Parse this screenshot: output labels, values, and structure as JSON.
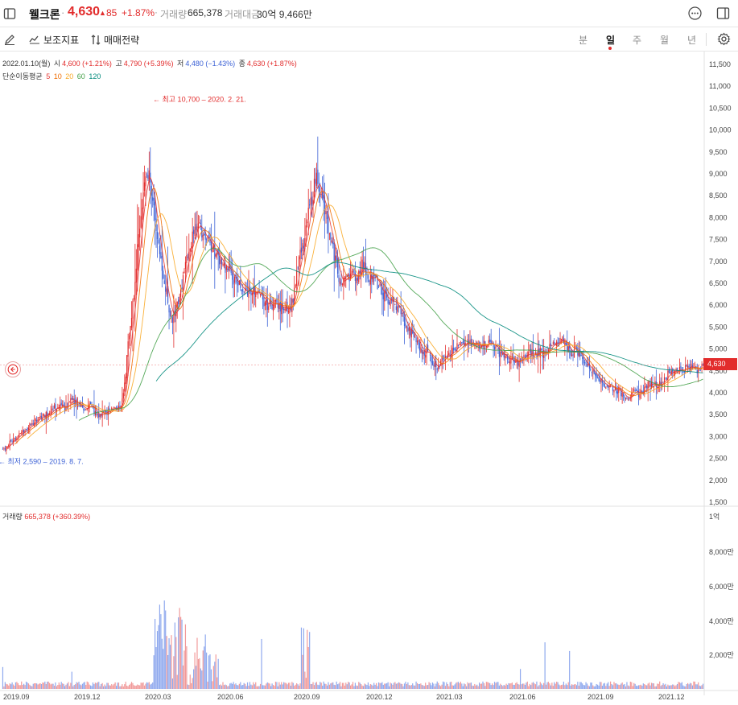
{
  "header": {
    "stock_name": "웰크론",
    "price": "4,630",
    "change": "85",
    "change_rate": "+1.87%",
    "volume_label": "거래량",
    "volume_value": "665,378",
    "amount_label": "거래대금",
    "amount_value": "30억 9,466만"
  },
  "toolbar": {
    "indicators_label": "보조지표",
    "strategy_label": "매매전략",
    "periods": [
      "분",
      "일",
      "주",
      "월",
      "년"
    ],
    "active_period": "일"
  },
  "legend": {
    "date": "2022.01.10(월)",
    "open_label": "시",
    "open_value": "4,600 (+1.21%)",
    "high_label": "고",
    "high_value": "4,790 (+5.39%)",
    "low_label": "저",
    "low_value": "4,480 (−1.43%)",
    "close_label": "종",
    "close_value": "4,630 (+1.87%)",
    "ma_label": "단순이동평균",
    "ma_periods": [
      "5",
      "10",
      "20",
      "60",
      "120"
    ]
  },
  "volume_legend": {
    "label": "거래량",
    "value": "665,378 (+360.39%)"
  },
  "colors": {
    "up": "#e22c2c",
    "down": "#3d62d6",
    "ma5": "#e53935",
    "ma10": "#ef6c00",
    "ma20": "#f9a825",
    "ma60": "#43a047",
    "ma120": "#00897b"
  },
  "icons": {
    "panel": "panel-toggle-icon",
    "more": "more-icon",
    "sidebar": "sidebar-icon",
    "draw": "pencil-icon",
    "indicators": "indicator-icon",
    "strategy": "strategy-icon",
    "settings": "gear-icon",
    "back": "back-arrow-icon"
  },
  "chart_data": {
    "type": "candlestick",
    "y_ticks": [
      "11,500",
      "11,000",
      "10,500",
      "10,000",
      "9,500",
      "9,000",
      "8,500",
      "8,000",
      "7,500",
      "7,000",
      "6,500",
      "6,000",
      "5,500",
      "5,000",
      "4,500",
      "4,000",
      "3,500",
      "3,000",
      "2,500",
      "2,000",
      "1,500"
    ],
    "ylim": [
      1500,
      11500
    ],
    "x_ticks": [
      "2019.09",
      "2019.12",
      "2020.03",
      "2020.06",
      "2020.09",
      "2020.12",
      "2021.03",
      "2021.06",
      "2021.09",
      "2021.12"
    ],
    "volume_ticks": [
      "1억",
      "8,000만",
      "6,000만",
      "4,000만",
      "2,000만"
    ],
    "current_price_label": "4,630",
    "current_price": 4630,
    "max_annotation": "← 최고 10,700 – 2020. 2. 21.",
    "max_value": 10700,
    "min_annotation": "← 최저 2,590 – 2019. 8. 7.",
    "min_value": 2590,
    "close_series": [
      {
        "x": "2019.08",
        "y": 2700
      },
      {
        "x": "2019.09",
        "y": 3200
      },
      {
        "x": "2019.10",
        "y": 3600
      },
      {
        "x": "2019.11",
        "y": 3800
      },
      {
        "x": "2019.12",
        "y": 3500
      },
      {
        "x": "2020.01",
        "y": 3700
      },
      {
        "x": "2020.02",
        "y": 9500
      },
      {
        "x": "2020.03",
        "y": 5500
      },
      {
        "x": "2020.04",
        "y": 7800
      },
      {
        "x": "2020.05",
        "y": 7000
      },
      {
        "x": "2020.06",
        "y": 6400
      },
      {
        "x": "2020.07",
        "y": 6100
      },
      {
        "x": "2020.08",
        "y": 6000
      },
      {
        "x": "2020.09",
        "y": 9000
      },
      {
        "x": "2020.10",
        "y": 6500
      },
      {
        "x": "2020.11",
        "y": 6900
      },
      {
        "x": "2020.12",
        "y": 6200
      },
      {
        "x": "2021.01",
        "y": 5300
      },
      {
        "x": "2021.02",
        "y": 4700
      },
      {
        "x": "2021.03",
        "y": 5100
      },
      {
        "x": "2021.04",
        "y": 5200
      },
      {
        "x": "2021.05",
        "y": 4700
      },
      {
        "x": "2021.06",
        "y": 4900
      },
      {
        "x": "2021.07",
        "y": 5200
      },
      {
        "x": "2021.08",
        "y": 4800
      },
      {
        "x": "2021.09",
        "y": 4100
      },
      {
        "x": "2021.10",
        "y": 4000
      },
      {
        "x": "2021.11",
        "y": 4200
      },
      {
        "x": "2021.12",
        "y": 4500
      },
      {
        "x": "2022.01",
        "y": 4630
      }
    ]
  }
}
